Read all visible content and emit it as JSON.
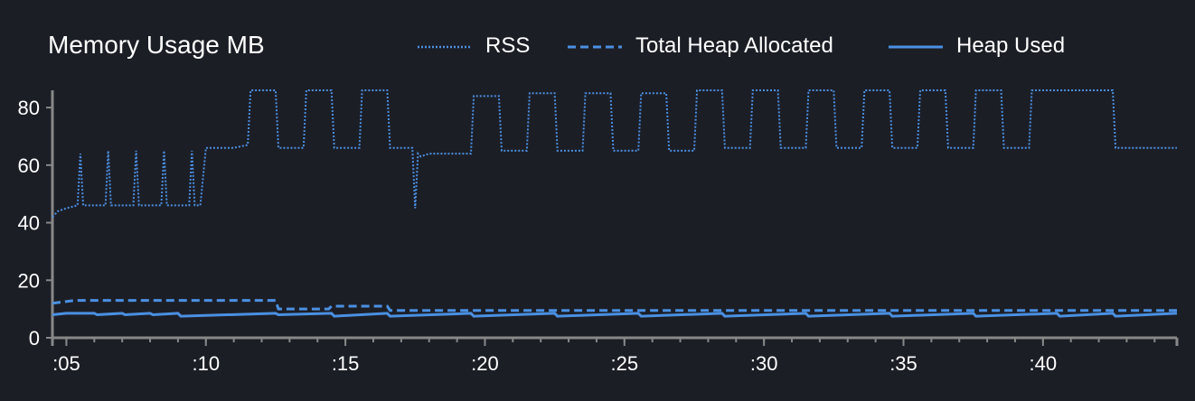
{
  "colors": {
    "background": "#1c1e26",
    "line": "#4a90e2",
    "axis": "#888888",
    "text": "#ffffff"
  },
  "chart_data": {
    "type": "line",
    "title": "Memory Usage MB",
    "legend_position": "top",
    "grid": false,
    "xlim": [
      4.5,
      44.8
    ],
    "ylim": [
      0,
      86
    ],
    "y_ticks": [
      0,
      20,
      40,
      60,
      80
    ],
    "x_ticks": [
      5,
      10,
      15,
      20,
      25,
      30,
      35,
      40
    ],
    "x_tick_labels": [
      ":05",
      ":10",
      ":15",
      ":20",
      ":25",
      ":30",
      ":35",
      ":40"
    ],
    "series": [
      {
        "name": "RSS",
        "style": "dotted",
        "x": [
          4.5,
          4.7,
          5,
          5.4,
          5.5,
          5.6,
          6.4,
          6.5,
          6.6,
          7.4,
          7.5,
          7.6,
          8.4,
          8.5,
          8.6,
          9.4,
          9.5,
          9.6,
          9.8,
          10,
          11,
          11.5,
          11.6,
          12.5,
          12.6,
          13.5,
          13.6,
          14.5,
          14.6,
          15.5,
          15.6,
          16.5,
          16.6,
          17.4,
          17.5,
          17.6,
          17.7,
          18,
          19.5,
          19.6,
          20.5,
          20.6,
          21.5,
          21.6,
          22.5,
          22.6,
          23.5,
          23.6,
          24.5,
          24.6,
          25.5,
          25.6,
          26.5,
          26.6,
          27.5,
          27.6,
          28.5,
          28.6,
          29.5,
          29.6,
          30.5,
          30.6,
          31.5,
          31.6,
          32.5,
          32.6,
          33.5,
          33.6,
          34.5,
          34.6,
          35.5,
          35.6,
          36.5,
          36.6,
          37.5,
          37.6,
          38.5,
          38.6,
          39.5,
          39.6,
          40.5,
          40.6,
          42.5,
          42.6,
          44.8
        ],
        "y": [
          42,
          44,
          45,
          46,
          64,
          46,
          46,
          65,
          46,
          46,
          65,
          46,
          46,
          65,
          46,
          46,
          65,
          46,
          46,
          66,
          66,
          67,
          86,
          86,
          66,
          66,
          86,
          86,
          66,
          66,
          86,
          86,
          66,
          66,
          45,
          64,
          63,
          64,
          64,
          84,
          84,
          65,
          65,
          85,
          85,
          65,
          65,
          85,
          85,
          65,
          65,
          85,
          85,
          65,
          65,
          86,
          86,
          66,
          66,
          86,
          86,
          66,
          66,
          86,
          86,
          66,
          66,
          86,
          86,
          66,
          66,
          86,
          86,
          66,
          66,
          86,
          86,
          66,
          66,
          86,
          86,
          86,
          86,
          66,
          66
        ]
      },
      {
        "name": "Total Heap Allocated",
        "style": "dashed",
        "x": [
          4.5,
          5.3,
          12.5,
          12.6,
          14.4,
          14.5,
          16.5,
          16.6,
          44.8
        ],
        "y": [
          12,
          13,
          13,
          10,
          10,
          11,
          11,
          9.5,
          9.5
        ]
      },
      {
        "name": "Heap Used",
        "style": "solid",
        "x": [
          4.5,
          5,
          6,
          6.1,
          7,
          7.1,
          8,
          8.1,
          9,
          9.1,
          12.5,
          12.6,
          14.5,
          14.6,
          16.5,
          16.6,
          19.5,
          19.6,
          22.5,
          22.6,
          25.5,
          25.6,
          28.5,
          28.6,
          31.5,
          31.6,
          34.5,
          34.6,
          37.5,
          37.6,
          40.5,
          40.6,
          42.5,
          42.6,
          44.8
        ],
        "y": [
          8,
          8.5,
          8.5,
          8,
          8.5,
          8,
          8.5,
          8,
          8.5,
          7.5,
          8.5,
          8,
          8.5,
          7.5,
          8.5,
          7.5,
          8.5,
          7.5,
          8.5,
          7.5,
          8.5,
          7.5,
          8.5,
          7.5,
          8.5,
          7.5,
          8.5,
          7.5,
          8.5,
          7.5,
          8.5,
          7.5,
          8.5,
          7.5,
          8.5
        ]
      }
    ]
  }
}
